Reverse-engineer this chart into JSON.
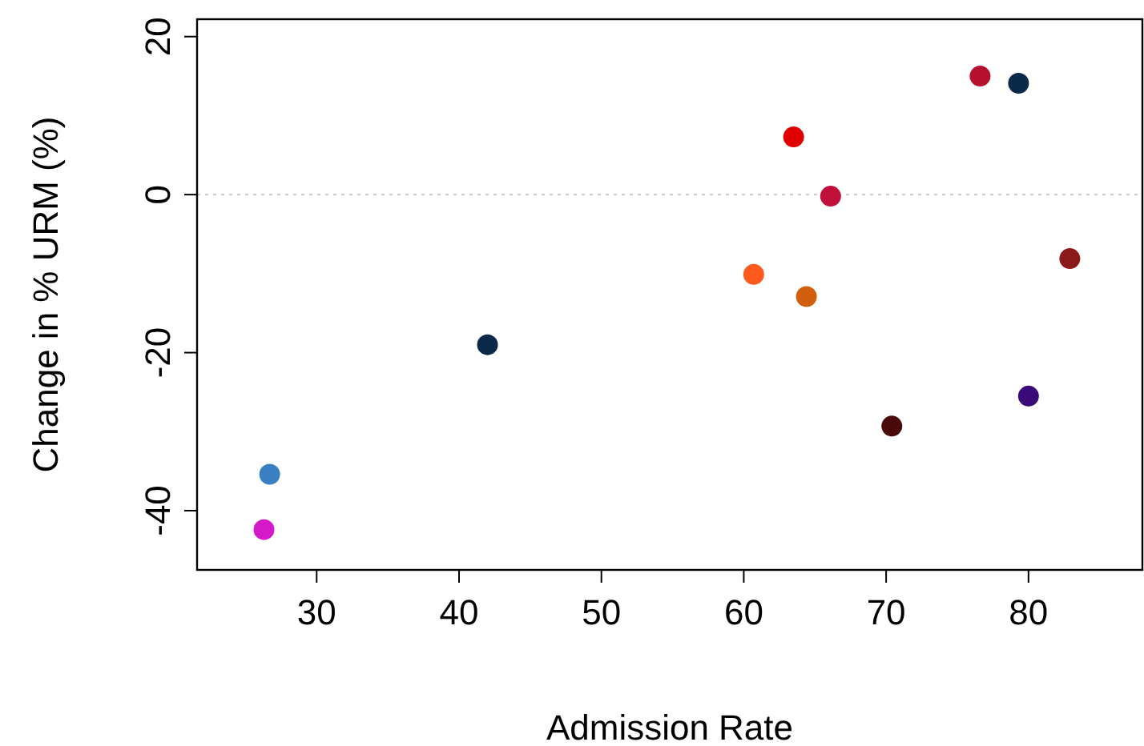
{
  "chart_data": {
    "type": "scatter",
    "xlabel": "Admission Rate",
    "ylabel": "Change in % URM (%)",
    "x": [
      26.3,
      26.7,
      42.0,
      60.7,
      63.5,
      64.4,
      66.1,
      70.4,
      76.6,
      79.3,
      80.0,
      82.9
    ],
    "values": [
      -42.4,
      -35.4,
      -19.0,
      -10.1,
      7.3,
      -12.9,
      -0.2,
      -29.3,
      15.0,
      14.1,
      -25.5,
      -8.1
    ],
    "colors": [
      "#d41ac8",
      "#3a7fc1",
      "#0b2a4a",
      "#ff5a1e",
      "#e00000",
      "#d0600e",
      "#c0103a",
      "#4a0a0a",
      "#b5102e",
      "#0b2a4a",
      "#3a0a7a",
      "#8b1a1a"
    ],
    "xlim": [
      21.6,
      88
    ],
    "ylim": [
      -47.5,
      22.2
    ],
    "xticks": [
      30,
      40,
      50,
      60,
      70,
      80
    ],
    "yticks": [
      -40,
      -20,
      0,
      20
    ],
    "marker": "circle",
    "grid": false,
    "ref_lines": [
      {
        "axis": "y",
        "value": 0,
        "color": "#cccccc",
        "line_style": "dotted"
      }
    ]
  }
}
